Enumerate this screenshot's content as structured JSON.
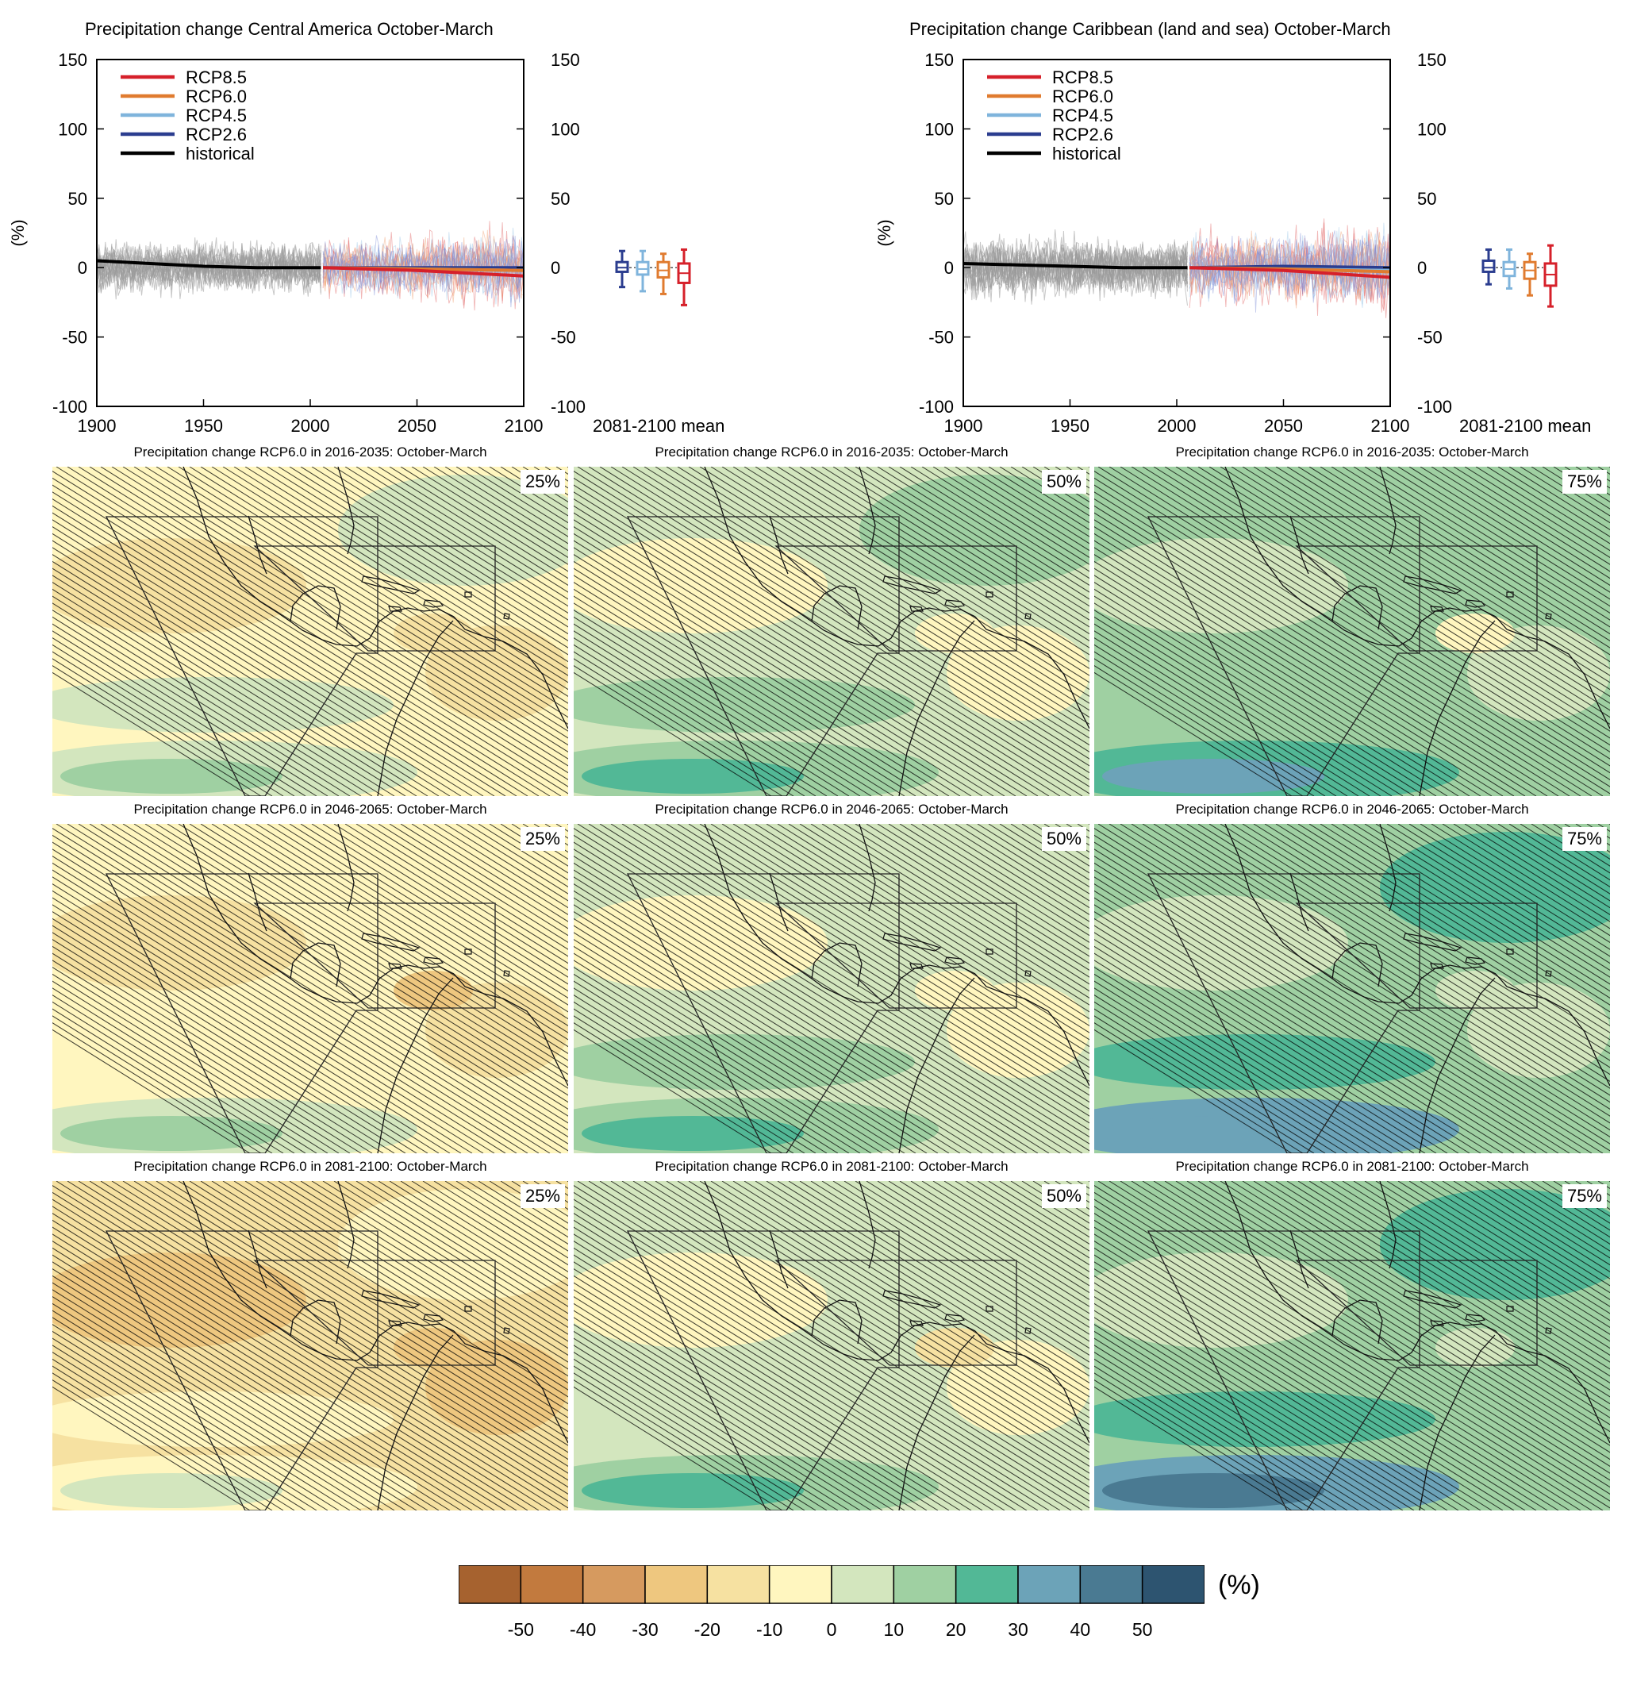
{
  "chart_data": [
    {
      "type": "line",
      "title": "Precipitation change Central America October-March",
      "ylabel": "(%)",
      "xlim": [
        1900,
        2100
      ],
      "ylim": [
        -100,
        150
      ],
      "x_ticks": [
        "1900",
        "1950",
        "2000",
        "2050",
        "2100"
      ],
      "y_ticks": [
        "150",
        "100",
        "50",
        "0",
        "-50",
        "-100"
      ],
      "legend": [
        "RCP8.5",
        "RCP6.0",
        "RCP4.5",
        "RCP2.6",
        "historical"
      ],
      "legend_position": "top-left",
      "series": [
        {
          "name": "historical",
          "color": "#000000",
          "x": [
            1900,
            1925,
            1950,
            1975,
            2005
          ],
          "values": [
            5,
            3,
            1,
            0,
            0
          ]
        },
        {
          "name": "RCP2.6",
          "color": "#2b3d8f",
          "x": [
            2006,
            2050,
            2100
          ],
          "values": [
            0,
            0,
            0
          ]
        },
        {
          "name": "RCP4.5",
          "color": "#7fb4dc",
          "x": [
            2006,
            2050,
            2100
          ],
          "values": [
            0,
            -1,
            -2
          ]
        },
        {
          "name": "RCP6.0",
          "color": "#e07b2f",
          "x": [
            2006,
            2050,
            2100
          ],
          "values": [
            0,
            -1,
            -2
          ]
        },
        {
          "name": "RCP8.5",
          "color": "#d6202a",
          "x": [
            2006,
            2050,
            2100
          ],
          "values": [
            0,
            -2,
            -6
          ]
        }
      ],
      "boxplots": {
        "label": "2081-2100 mean",
        "items": [
          {
            "name": "RCP2.6",
            "color": "#2b3d8f",
            "min": -14,
            "q1": -3,
            "median": 0,
            "q3": 4,
            "max": 12
          },
          {
            "name": "RCP4.5",
            "color": "#7fb4dc",
            "min": -17,
            "q1": -5,
            "median": -1,
            "q3": 4,
            "max": 12
          },
          {
            "name": "RCP6.0",
            "color": "#e07b2f",
            "min": -19,
            "q1": -7,
            "median": -2,
            "q3": 4,
            "max": 10
          },
          {
            "name": "RCP8.5",
            "color": "#d6202a",
            "min": -27,
            "q1": -11,
            "median": -4,
            "q3": 3,
            "max": 13
          }
        ]
      }
    },
    {
      "type": "line",
      "title": "Precipitation change Caribbean (land and sea) October-March",
      "ylabel": "(%)",
      "xlim": [
        1900,
        2100
      ],
      "ylim": [
        -100,
        150
      ],
      "x_ticks": [
        "1900",
        "1950",
        "2000",
        "2050",
        "2100"
      ],
      "y_ticks": [
        "150",
        "100",
        "50",
        "0",
        "-50",
        "-100"
      ],
      "legend": [
        "RCP8.5",
        "RCP6.0",
        "RCP4.5",
        "RCP2.6",
        "historical"
      ],
      "legend_position": "top-left",
      "series": [
        {
          "name": "historical",
          "color": "#000000",
          "x": [
            1900,
            1925,
            1950,
            1975,
            2005
          ],
          "values": [
            3,
            2,
            1,
            0,
            0
          ]
        },
        {
          "name": "RCP2.6",
          "color": "#2b3d8f",
          "x": [
            2006,
            2050,
            2100
          ],
          "values": [
            0,
            1,
            0
          ]
        },
        {
          "name": "RCP4.5",
          "color": "#7fb4dc",
          "x": [
            2006,
            2050,
            2100
          ],
          "values": [
            0,
            -1,
            -2
          ]
        },
        {
          "name": "RCP6.0",
          "color": "#e07b2f",
          "x": [
            2006,
            2050,
            2100
          ],
          "values": [
            0,
            -1,
            -3
          ]
        },
        {
          "name": "RCP8.5",
          "color": "#d6202a",
          "x": [
            2006,
            2050,
            2100
          ],
          "values": [
            0,
            -2,
            -7
          ]
        }
      ],
      "boxplots": {
        "label": "2081-2100 mean",
        "items": [
          {
            "name": "RCP2.6",
            "color": "#2b3d8f",
            "min": -12,
            "q1": -3,
            "median": 0,
            "q3": 5,
            "max": 13
          },
          {
            "name": "RCP4.5",
            "color": "#7fb4dc",
            "min": -15,
            "q1": -6,
            "median": -1,
            "q3": 4,
            "max": 13
          },
          {
            "name": "RCP6.0",
            "color": "#e07b2f",
            "min": -20,
            "q1": -8,
            "median": -2,
            "q3": 4,
            "max": 10
          },
          {
            "name": "RCP8.5",
            "color": "#d6202a",
            "min": -28,
            "q1": -13,
            "median": -5,
            "q3": 3,
            "max": 16
          }
        ]
      }
    },
    {
      "type": "heatmap",
      "maps": [
        {
          "title": "Precipitation change RCP6.0 in 2016-2035: October-March",
          "percentile": "25%",
          "level": -0.4
        },
        {
          "title": "Precipitation change RCP6.0 in 2016-2035: October-March",
          "percentile": "50%",
          "level": 0.3
        },
        {
          "title": "Precipitation change RCP6.0 in 2016-2035: October-March",
          "percentile": "75%",
          "level": 1.0
        },
        {
          "title": "Precipitation change RCP6.0 in 2046-2065: October-March",
          "percentile": "25%",
          "level": -1.0
        },
        {
          "title": "Precipitation change RCP6.0 in 2046-2065: October-March",
          "percentile": "50%",
          "level": 0.1
        },
        {
          "title": "Precipitation change RCP6.0 in 2046-2065: October-March",
          "percentile": "75%",
          "level": 1.6
        },
        {
          "title": "Precipitation change RCP6.0 in 2081-2100: October-March",
          "percentile": "25%",
          "level": -1.7
        },
        {
          "title": "Precipitation change RCP6.0 in 2081-2100: October-March",
          "percentile": "50%",
          "level": 0.0
        },
        {
          "title": "Precipitation change RCP6.0 in 2081-2100: October-March",
          "percentile": "75%",
          "level": 1.8
        }
      ],
      "colorbar": {
        "unit": "(%)",
        "ticks": [
          "-50",
          "-40",
          "-30",
          "-20",
          "-10",
          "0",
          "10",
          "20",
          "30",
          "40",
          "50"
        ],
        "colors": [
          "#a6622f",
          "#c27a3e",
          "#d69a5f",
          "#eec77f",
          "#f6e1a1",
          "#fff6bf",
          "#d3e6be",
          "#9fd0a2",
          "#52b896",
          "#6ca3b8",
          "#4a7a92",
          "#2d5470"
        ]
      }
    }
  ]
}
